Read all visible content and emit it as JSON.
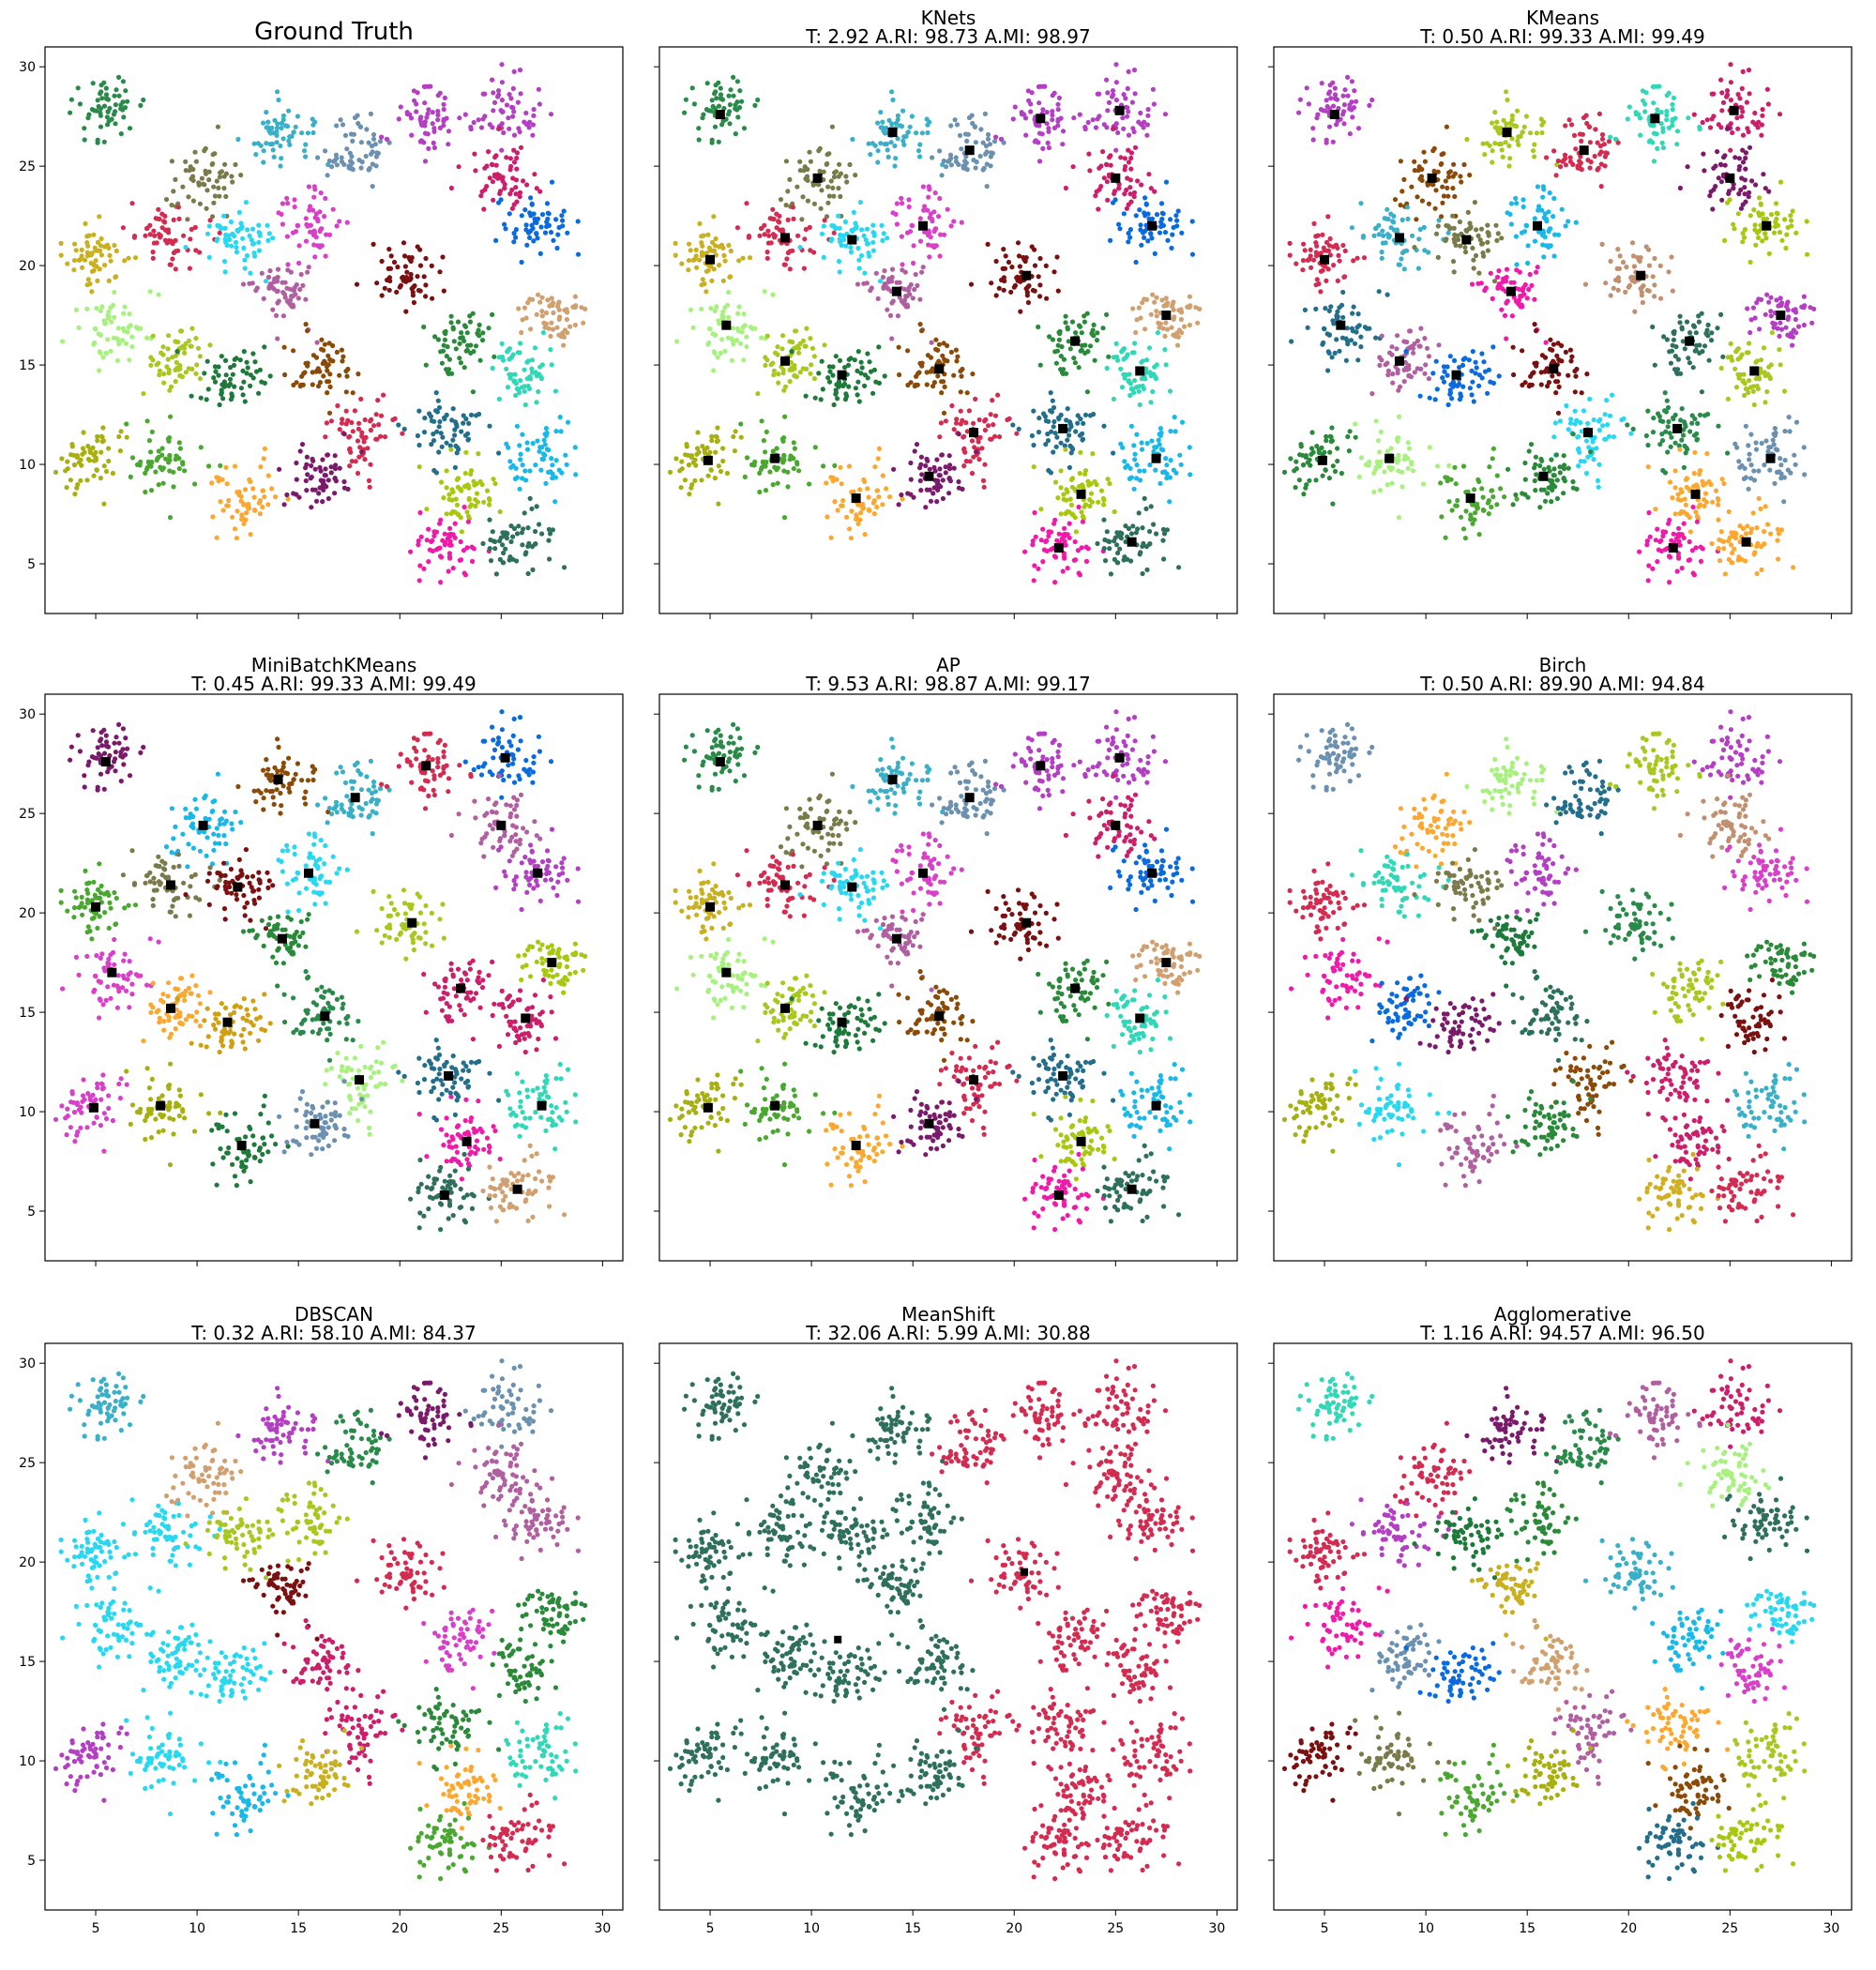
{
  "figure": {
    "layout": "3x3 grid of scatter plots, shared x and y axes",
    "center_marker_color": "#000000"
  },
  "chart_data": [
    {
      "type": "scatter",
      "title": "Ground Truth",
      "title_line2": "",
      "xlim": [
        2.5,
        31
      ],
      "ylim": [
        2.5,
        31
      ],
      "xticks": [
        5,
        10,
        15,
        20,
        25,
        30
      ],
      "yticks": [
        5,
        10,
        15,
        20,
        25,
        30
      ],
      "show_centers": false,
      "clusters": "truth"
    },
    {
      "type": "scatter",
      "title": "KNets",
      "title_line2": "T: 2.92 A.RI: 98.73 A.MI: 98.97",
      "xlim": [
        2.5,
        31
      ],
      "ylim": [
        2.5,
        31
      ],
      "xticks": [
        5,
        10,
        15,
        20,
        25,
        30
      ],
      "yticks": [
        5,
        10,
        15,
        20,
        25,
        30
      ],
      "show_centers": true,
      "clusters": "truth"
    },
    {
      "type": "scatter",
      "title": "KMeans",
      "title_line2": "T: 0.50 A.RI: 99.33 A.MI: 99.49",
      "xlim": [
        2.5,
        31
      ],
      "ylim": [
        2.5,
        31
      ],
      "xticks": [
        5,
        10,
        15,
        20,
        25,
        30
      ],
      "yticks": [
        5,
        10,
        15,
        20,
        25,
        30
      ],
      "show_centers": true,
      "clusters": "truth"
    },
    {
      "type": "scatter",
      "title": "MiniBatchKMeans",
      "title_line2": "T: 0.45 A.RI: 99.33 A.MI: 99.49",
      "xlim": [
        2.5,
        31
      ],
      "ylim": [
        2.5,
        31
      ],
      "xticks": [
        5,
        10,
        15,
        20,
        25,
        30
      ],
      "yticks": [
        5,
        10,
        15,
        20,
        25,
        30
      ],
      "show_centers": true,
      "clusters": "truth"
    },
    {
      "type": "scatter",
      "title": "AP",
      "title_line2": "T: 9.53 A.RI: 98.87 A.MI: 99.17",
      "xlim": [
        2.5,
        31
      ],
      "ylim": [
        2.5,
        31
      ],
      "xticks": [
        5,
        10,
        15,
        20,
        25,
        30
      ],
      "yticks": [
        5,
        10,
        15,
        20,
        25,
        30
      ],
      "show_centers": true,
      "clusters": "truth"
    },
    {
      "type": "scatter",
      "title": "Birch",
      "title_line2": "T: 0.50 A.RI: 89.90 A.MI: 94.84",
      "xlim": [
        2.5,
        31
      ],
      "ylim": [
        2.5,
        31
      ],
      "xticks": [
        5,
        10,
        15,
        20,
        25,
        30
      ],
      "yticks": [
        5,
        10,
        15,
        20,
        25,
        30
      ],
      "show_centers": false,
      "clusters": "truth"
    },
    {
      "type": "scatter",
      "title": "DBSCAN",
      "title_line2": "T: 0.32 A.RI: 58.10 A.MI: 84.37",
      "xlim": [
        2.5,
        31
      ],
      "ylim": [
        2.5,
        31
      ],
      "xticks": [
        5,
        10,
        15,
        20,
        25,
        30
      ],
      "yticks": [
        5,
        10,
        15,
        20,
        25,
        30
      ],
      "show_centers": false,
      "clusters": "truth"
    },
    {
      "type": "scatter",
      "title": "MeanShift",
      "title_line2": "T: 32.06 A.RI: 5.99 A.MI: 30.88",
      "xlim": [
        2.5,
        31
      ],
      "ylim": [
        2.5,
        31
      ],
      "xticks": [
        5,
        10,
        15,
        20,
        25,
        30
      ],
      "yticks": [
        5,
        10,
        15,
        20,
        25,
        30
      ],
      "show_centers": false,
      "clusters": "meanshift",
      "centers": [
        [
          20.5,
          19.5
        ],
        [
          11.3,
          16.1
        ]
      ],
      "colors": [
        "#d42b50",
        "#2e6f5e"
      ]
    },
    {
      "type": "scatter",
      "title": "Agglomerative",
      "title_line2": "T: 1.16 A.RI: 94.57 A.MI: 96.50",
      "xlim": [
        2.5,
        31
      ],
      "ylim": [
        2.5,
        31
      ],
      "xticks": [
        5,
        10,
        15,
        20,
        25,
        30
      ],
      "yticks": [
        5,
        10,
        15,
        20,
        25,
        30
      ],
      "show_centers": false,
      "clusters": "truth"
    }
  ],
  "clusters": [
    {
      "x": 5.5,
      "y": 27.6
    },
    {
      "x": 14.0,
      "y": 26.7
    },
    {
      "x": 17.8,
      "y": 25.8
    },
    {
      "x": 21.3,
      "y": 27.4
    },
    {
      "x": 25.2,
      "y": 27.8
    },
    {
      "x": 10.3,
      "y": 24.4
    },
    {
      "x": 25.0,
      "y": 24.4
    },
    {
      "x": 5.0,
      "y": 20.3
    },
    {
      "x": 8.7,
      "y": 21.4
    },
    {
      "x": 12.0,
      "y": 21.3
    },
    {
      "x": 15.5,
      "y": 22.0
    },
    {
      "x": 26.8,
      "y": 22.0
    },
    {
      "x": 20.6,
      "y": 19.5
    },
    {
      "x": 14.2,
      "y": 18.7
    },
    {
      "x": 5.8,
      "y": 17.0
    },
    {
      "x": 27.5,
      "y": 17.5
    },
    {
      "x": 8.7,
      "y": 15.2
    },
    {
      "x": 11.5,
      "y": 14.5
    },
    {
      "x": 16.3,
      "y": 14.8
    },
    {
      "x": 23.0,
      "y": 16.2
    },
    {
      "x": 26.2,
      "y": 14.7
    },
    {
      "x": 18.0,
      "y": 11.6
    },
    {
      "x": 22.4,
      "y": 11.8
    },
    {
      "x": 4.9,
      "y": 10.2
    },
    {
      "x": 8.2,
      "y": 10.3
    },
    {
      "x": 27.0,
      "y": 10.3
    },
    {
      "x": 12.2,
      "y": 8.3
    },
    {
      "x": 15.8,
      "y": 9.4
    },
    {
      "x": 23.3,
      "y": 8.5
    },
    {
      "x": 22.2,
      "y": 5.8
    },
    {
      "x": 25.8,
      "y": 6.1
    }
  ],
  "palettes": {
    "truth": [
      "#2a8a4a",
      "#3ab0c8",
      "#6c90b0",
      "#b33fc2",
      "#b33fc2",
      "#7a7a4a",
      "#cc1f6a",
      "#c8b020",
      "#d42b50",
      "#28d8f0",
      "#d840c8",
      "#0a6ae0",
      "#7a1010",
      "#b060a0",
      "#a8f080",
      "#d0a070",
      "#a8c820",
      "#1e7a3a",
      "#8a4a08",
      "#2a8a3a",
      "#30d8b8",
      "#d42b50",
      "#236e8a",
      "#a8b010",
      "#4aa830",
      "#18b8e8",
      "#fca830",
      "#7a1a6a",
      "#a8c810",
      "#f01aa8",
      "#2e6f5e"
    ],
    "knets": [
      "#2a8a4a",
      "#3ab0c8",
      "#6c90b0",
      "#b33fc2",
      "#b33fc2",
      "#7a7a4a",
      "#cc1f6a",
      "#c8b020",
      "#d42b50",
      "#28d8f0",
      "#d840c8",
      "#0a6ae0",
      "#7a1010",
      "#b060a0",
      "#a8f080",
      "#d0a070",
      "#a8c820",
      "#1e7a3a",
      "#8a4a08",
      "#2a8a3a",
      "#30d8b8",
      "#d42b50",
      "#236e8a",
      "#a8b010",
      "#4aa830",
      "#18b8e8",
      "#fca830",
      "#7a1a6a",
      "#a8c810",
      "#f01aa8",
      "#2e6f5e"
    ],
    "kmeans": [
      "#b33fc2",
      "#a8c820",
      "#d42b50",
      "#30d8b8",
      "#cc1f6a",
      "#8a4a08",
      "#7a1a6a",
      "#d42b50",
      "#3ab0c8",
      "#7a7a4a",
      "#18b8e8",
      "#a8c810",
      "#c09070",
      "#f01aa8",
      "#236e8a",
      "#b33fc2",
      "#b060a0",
      "#0a6ae0",
      "#7a1010",
      "#2e6f5e",
      "#a8c820",
      "#28d8f0",
      "#2a8a4a",
      "#2a8a3a",
      "#a8f080",
      "#6c90b0",
      "#4aa830",
      "#2a8a3a",
      "#fca830",
      "#f01aa8",
      "#fca830"
    ],
    "minibatch": [
      "#7a1a6a",
      "#8a4a08",
      "#3ab0c8",
      "#d42b50",
      "#0a6ae0",
      "#18b8e8",
      "#b060a0",
      "#4aa830",
      "#7a7a4a",
      "#7a1010",
      "#28d8f0",
      "#b33fc2",
      "#a8c820",
      "#2a8a3a",
      "#d840c8",
      "#a8c810",
      "#fca830",
      "#d0a010",
      "#2a8a4a",
      "#cc1f6a",
      "#cc1f6a",
      "#a8f080",
      "#236e8a",
      "#d840c8",
      "#a8b010",
      "#30d8b8",
      "#1e7a3a",
      "#6c90b0",
      "#f01aa8",
      "#2e6f5e",
      "#d0a070"
    ],
    "ap": [
      "#2a8a4a",
      "#3ab0c8",
      "#6c90b0",
      "#b33fc2",
      "#b33fc2",
      "#7a7a4a",
      "#cc1f6a",
      "#c8b020",
      "#d42b50",
      "#28d8f0",
      "#d840c8",
      "#0a6ae0",
      "#7a1010",
      "#b060a0",
      "#a8f080",
      "#d0a070",
      "#a8c820",
      "#1e7a3a",
      "#8a4a08",
      "#2a8a3a",
      "#30d8b8",
      "#d42b50",
      "#236e8a",
      "#a8b010",
      "#4aa830",
      "#18b8e8",
      "#fca830",
      "#7a1a6a",
      "#a8c810",
      "#f01aa8",
      "#2e6f5e"
    ],
    "birch": [
      "#6c90b0",
      "#a8f080",
      "#236e8a",
      "#a8c820",
      "#b33fc2",
      "#fca830",
      "#c09070",
      "#d42b50",
      "#30d8b8",
      "#7a7a4a",
      "#b33fc2",
      "#d840c8",
      "#2a8a4a",
      "#1e7a3a",
      "#f01aa8",
      "#2a8a3a",
      "#0a6ae0",
      "#7a1a6a",
      "#2e6f5e",
      "#a8c820",
      "#7a1010",
      "#8a4a08",
      "#cc1f6a",
      "#a8b010",
      "#28d8f0",
      "#3ab0c8",
      "#b060a0",
      "#2a8a3a",
      "#cc1f6a",
      "#d0b020",
      "#d42b50"
    ],
    "dbscan": [
      "#3ab0c8",
      "#b33fc2",
      "#2a8a4a",
      "#7a1a6a",
      "#6c90b0",
      "#d0a070",
      "#b060a0",
      "#28d8f0",
      "#28d8f0",
      "#a8c820",
      "#a8c820",
      "#b060a0",
      "#d42b50",
      "#7a1010",
      "#28d8f0",
      "#2a8a3a",
      "#28d8f0",
      "#28d8f0",
      "#cc1f6a",
      "#d840c8",
      "#2a8a3a",
      "#cc1f6a",
      "#2a8a3a",
      "#b33fc2",
      "#28d8f0",
      "#30d8b8",
      "#18b8e8",
      "#c8b020",
      "#fca830",
      "#4aa830",
      "#d42b50"
    ],
    "agglo": [
      "#30d8b8",
      "#7a1a6a",
      "#2a8a4a",
      "#b060a0",
      "#cc1f6a",
      "#d42b50",
      "#a8f080",
      "#d42b50",
      "#b33fc2",
      "#1e7a3a",
      "#2a8a3a",
      "#2e6f5e",
      "#3ab0c8",
      "#c8b020",
      "#f01aa8",
      "#28d8f0",
      "#6c90b0",
      "#0a6ae0",
      "#d0a070",
      "#18b8e8",
      "#d840c8",
      "#b060a0",
      "#fca830",
      "#7a1010",
      "#7a7a4a",
      "#a8c820",
      "#4aa830",
      "#a8b010",
      "#8a4a08",
      "#236e8a",
      "#a8c810"
    ]
  }
}
